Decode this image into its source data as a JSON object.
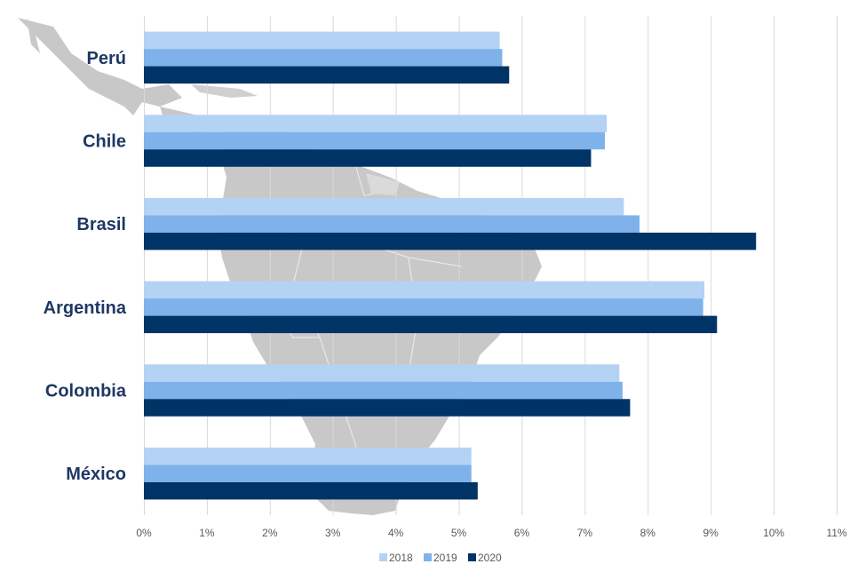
{
  "chart_data": {
    "type": "bar",
    "orientation": "horizontal",
    "categories": [
      "Perú",
      "Chile",
      "Brasil",
      "Argentina",
      "Colombia",
      "México"
    ],
    "series": [
      {
        "name": "2018",
        "color": "#b4d2f4",
        "values": [
          5.65,
          7.35,
          7.62,
          8.9,
          7.55,
          5.2
        ]
      },
      {
        "name": "2019",
        "color": "#7fb2ea",
        "values": [
          5.69,
          7.32,
          7.87,
          8.88,
          7.6,
          5.2
        ]
      },
      {
        "name": "2020",
        "color": "#003366",
        "values": [
          5.8,
          7.1,
          9.72,
          9.1,
          7.72,
          5.3
        ]
      }
    ],
    "xlim": [
      0,
      11
    ],
    "xticks": [
      "0%",
      "1%",
      "2%",
      "3%",
      "4%",
      "5%",
      "6%",
      "7%",
      "8%",
      "9%",
      "10%",
      "11%"
    ],
    "grid": true,
    "legend": "bottom",
    "background": "map of Latin America (light gray)"
  },
  "colors": {
    "category_label": "#1f3864",
    "grid": "#d9d9d9",
    "map": "#c8c8c8",
    "map_border": "#eeeeee"
  }
}
